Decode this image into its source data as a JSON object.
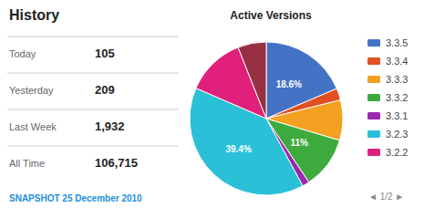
{
  "chart_data": {
    "type": "pie",
    "title": "Active Versions",
    "categories": [
      "3.3.5",
      "3.3.4",
      "3.3.3",
      "3.3.2",
      "3.3.1",
      "3.2.3",
      "3.2.2",
      null
    ],
    "values": [
      18.6,
      2.5,
      8.5,
      11.0,
      1.5,
      39.4,
      12.5,
      6.0
    ],
    "colors": [
      "#4472C4",
      "#E05020",
      "#F4A020",
      "#3DAA3D",
      "#9C27B0",
      "#29C0D8",
      "#E0207A",
      "#963040"
    ],
    "value_labels": [
      "18.6%",
      null,
      null,
      "11%",
      null,
      "39.4%",
      null,
      null
    ],
    "data_labels": true,
    "legend": "right",
    "annotations": [
      "History",
      "Today",
      "105",
      "Yesterday",
      "209",
      "Last Week",
      "1,932",
      "All Time",
      "106,715",
      "SNAPSHOT 25 December 2010",
      "◄ 1/2 ►"
    ]
  }
}
